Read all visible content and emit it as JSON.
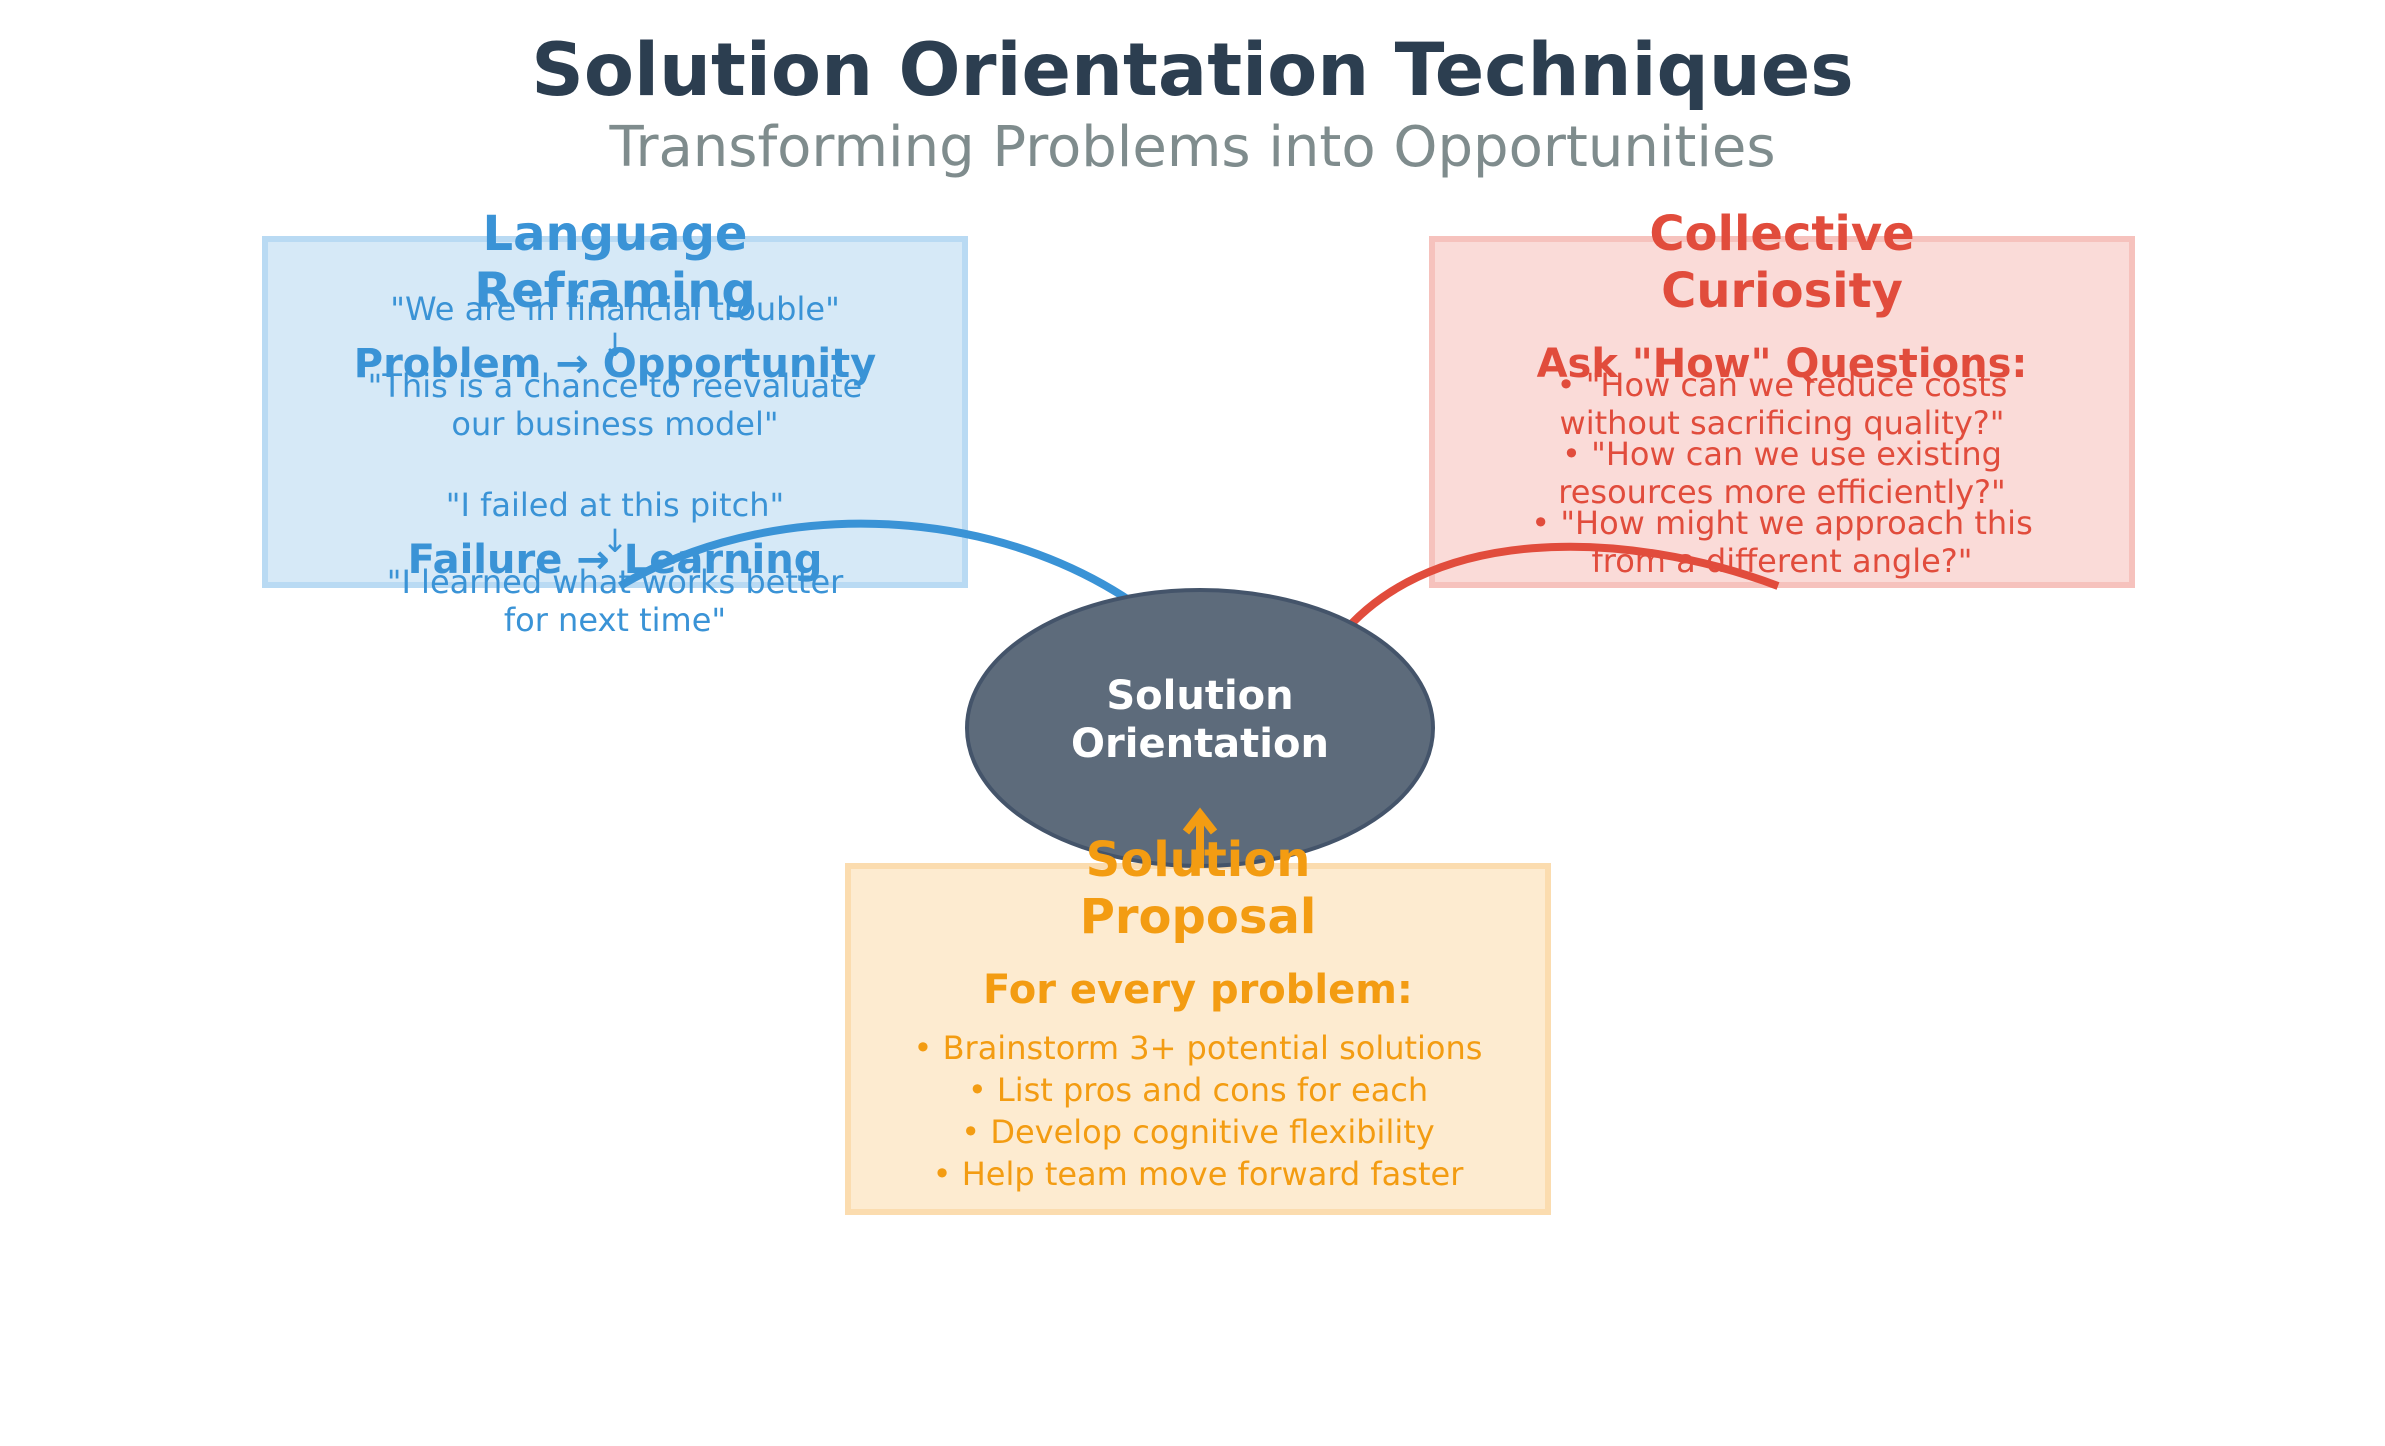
{
  "title": "Solution Orientation Techniques",
  "subtitle": "Transforming Problems into Opportunities",
  "center_node": {
    "label_line1": "Solution",
    "label_line2": "Orientation"
  },
  "language_reframing": {
    "title_line1": "Language",
    "title_line2": "Reframing",
    "example1_before": "\"We are in financial trouble\"",
    "arrow": "↓",
    "example1_heading": "Problem → Opportunity",
    "example1_after_line1": "\"This is a chance to reevaluate",
    "example1_after_line2": "our business model\"",
    "example2_before": "\"I failed at this pitch\"",
    "example2_heading": "Failure → Learning",
    "example2_after_line1": "\"I learned what works better",
    "example2_after_line2": "for next time\""
  },
  "collective_curiosity": {
    "title_line1": "Collective",
    "title_line2": "Curiosity",
    "heading": "Ask \"How\" Questions:",
    "q1_line1": "• \"How can we reduce costs",
    "q1_line2": "without sacrificing quality?\"",
    "q2_line1": "• \"How can we use existing",
    "q2_line2": "resources more efficiently?\"",
    "q3_line1": "• \"How might we approach this",
    "q3_line2": "from a different angle?\""
  },
  "solution_proposal": {
    "title_line1": "Solution",
    "title_line2": "Proposal",
    "heading": "For every problem:",
    "items": [
      "• Brainstorm 3+ potential solutions",
      "• List pros and cons for each",
      "• Develop cognitive flexibility",
      "• Help team move forward faster"
    ]
  },
  "colors": {
    "title": "#2c3e50",
    "subtitle": "#7f8c8d",
    "language": "#3a93d6",
    "curiosity": "#e14c3c",
    "proposal": "#f39c12",
    "center_node_fill": "#5d6b7b",
    "center_node_stroke": "#44546a"
  }
}
